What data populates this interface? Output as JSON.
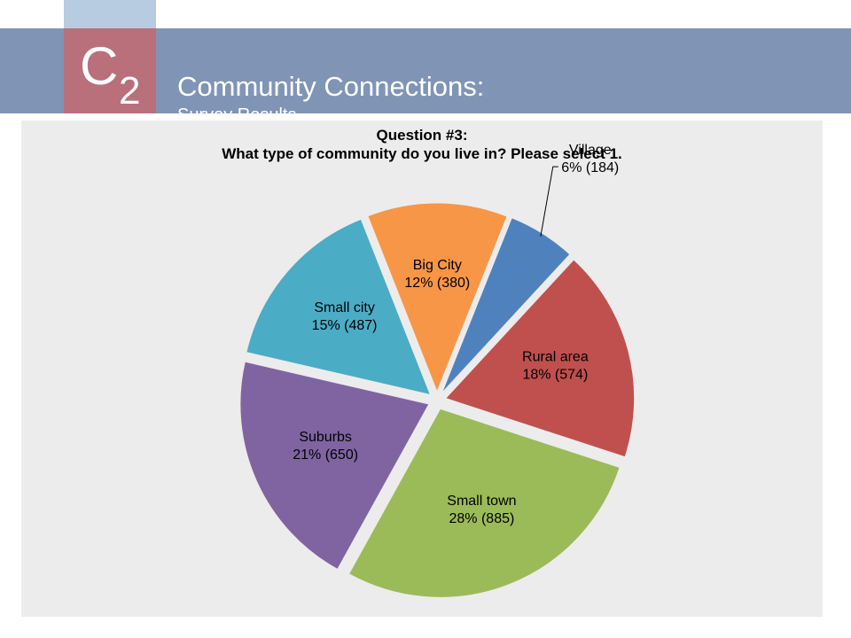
{
  "header": {
    "logo_letter": "C",
    "logo_subscript": "2",
    "title": "Community Connections:",
    "subtitle": "Survey Results"
  },
  "chart_data": {
    "type": "pie",
    "title_line1": "Question #3:",
    "title_line2": "What type of community do you live in? Please select 1.",
    "slices": [
      {
        "name": "Village",
        "percent_label": "6%",
        "count": 184,
        "label": "6% (184)",
        "color": "#4f81bd"
      },
      {
        "name": "Rural area",
        "percent_label": "18%",
        "count": 574,
        "label": "18% (574)",
        "color": "#c0504d"
      },
      {
        "name": "Small town",
        "percent_label": "28%",
        "count": 885,
        "label": "28% (885)",
        "color": "#9bbb59"
      },
      {
        "name": "Suburbs",
        "percent_label": "21%",
        "count": 650,
        "label": "21% (650)",
        "color": "#8064a2"
      },
      {
        "name": "Small city",
        "percent_label": "15%",
        "count": 487,
        "label": "15% (487)",
        "color": "#4bacc6"
      },
      {
        "name": "Big City",
        "percent_label": "12%",
        "count": 380,
        "label": "12% (380)",
        "color": "#f79646"
      }
    ],
    "exploded": true,
    "legend": "none"
  }
}
